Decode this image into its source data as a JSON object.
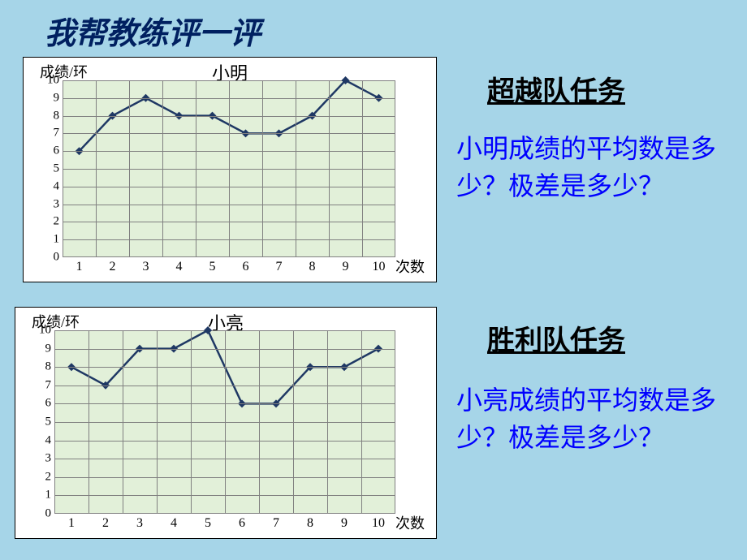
{
  "slide": {
    "background_color": "#a6d5e8",
    "main_title": "我帮教练评一评"
  },
  "task1": {
    "title": "超越队任务",
    "question": "小明成绩的平均数是多少？极差是多少？"
  },
  "task2": {
    "title": "胜利队任务",
    "question": "小亮成绩的平均数是多少？极差是多少？"
  },
  "chart1": {
    "type": "line",
    "title": "小明",
    "y_axis_label": "成绩/环",
    "x_axis_label": "次数",
    "plot_bg": "#e2f0d9",
    "grid_color": "#808080",
    "line_color": "#1f3864",
    "marker_color": "#1f3864",
    "marker_shape": "diamond",
    "marker_size": 10,
    "line_width": 2.5,
    "ylim": [
      0,
      10
    ],
    "yticks": [
      0,
      1,
      2,
      3,
      4,
      5,
      6,
      7,
      8,
      9,
      10
    ],
    "x_categories": [
      "1",
      "2",
      "3",
      "4",
      "5",
      "6",
      "7",
      "8",
      "9",
      "10"
    ],
    "values": [
      6,
      8,
      9,
      8,
      8,
      7,
      7,
      8,
      10,
      9
    ],
    "tick_fontsize": 15,
    "label_fontsize": 18,
    "title_fontsize": 22
  },
  "chart2": {
    "type": "line",
    "title": "小亮",
    "y_axis_label": "成绩/环",
    "x_axis_label": "次数",
    "plot_bg": "#e2f0d9",
    "grid_color": "#808080",
    "line_color": "#1f3864",
    "marker_color": "#1f3864",
    "marker_shape": "diamond",
    "marker_size": 10,
    "line_width": 2.5,
    "ylim": [
      0,
      10
    ],
    "yticks": [
      0,
      1,
      2,
      3,
      4,
      5,
      6,
      7,
      8,
      9,
      10
    ],
    "x_categories": [
      "1",
      "2",
      "3",
      "4",
      "5",
      "6",
      "7",
      "8",
      "9",
      "10"
    ],
    "values": [
      8,
      7,
      9,
      9,
      10,
      6,
      6,
      8,
      8,
      9
    ],
    "tick_fontsize": 15,
    "label_fontsize": 18,
    "title_fontsize": 22
  }
}
